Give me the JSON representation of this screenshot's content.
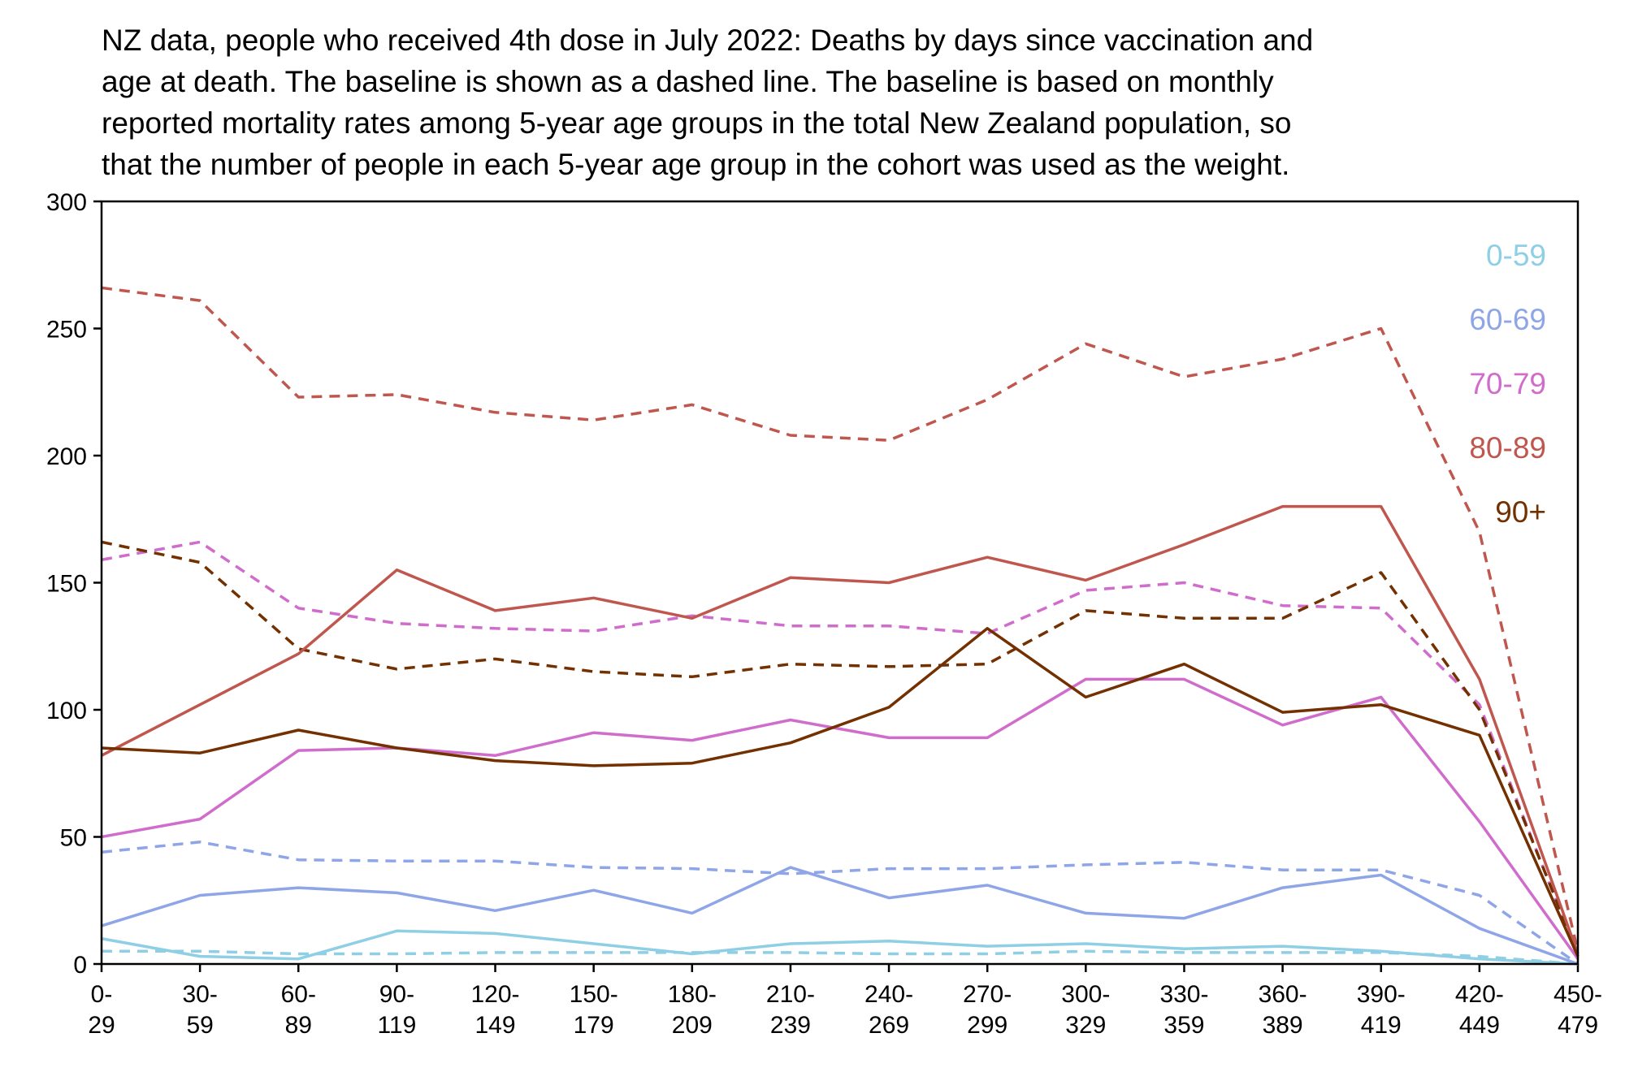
{
  "chart_data": {
    "type": "line",
    "title": [
      "NZ data, people who received 4th dose in July 2022: Deaths by days since vaccination and",
      "age at death. The baseline is shown as a dashed line. The baseline is based on monthly",
      "reported mortality rates among 5-year age groups in the total New Zealand population, so",
      "that the number of people in each 5-year age group in the cohort was used as the weight."
    ],
    "xlabel": "",
    "ylabel": "",
    "ylim": [
      0,
      300
    ],
    "yticks": [
      "0",
      "50",
      "100",
      "150",
      "200",
      "250",
      "300"
    ],
    "categories": [
      [
        "0-",
        "29"
      ],
      [
        "30-",
        "59"
      ],
      [
        "60-",
        "89"
      ],
      [
        "90-",
        "119"
      ],
      [
        "120-",
        "149"
      ],
      [
        "150-",
        "179"
      ],
      [
        "180-",
        "209"
      ],
      [
        "210-",
        "239"
      ],
      [
        "240-",
        "269"
      ],
      [
        "270-",
        "299"
      ],
      [
        "300-",
        "329"
      ],
      [
        "330-",
        "359"
      ],
      [
        "360-",
        "389"
      ],
      [
        "390-",
        "419"
      ],
      [
        "420-",
        "449"
      ],
      [
        "450-",
        "479"
      ]
    ],
    "grid": false,
    "legend_position": "top-right",
    "series": [
      {
        "name": "0-59",
        "color": "#8ecfe5",
        "values": [
          10,
          3,
          2,
          13,
          12,
          8,
          4,
          8,
          9,
          7,
          8,
          6,
          7,
          5,
          2,
          0
        ],
        "baseline": [
          5,
          5,
          4,
          4,
          4.5,
          4.5,
          4.5,
          4.5,
          4,
          4,
          5,
          4.5,
          4.5,
          4.5,
          3,
          0
        ]
      },
      {
        "name": "60-69",
        "color": "#8ea5e8",
        "values": [
          15,
          27,
          30,
          28,
          21,
          29,
          20,
          38,
          26,
          31,
          20,
          18,
          30,
          35,
          14,
          0
        ],
        "baseline": [
          44,
          48,
          41,
          40.5,
          40.5,
          38,
          37.5,
          35.5,
          37.5,
          37.5,
          39,
          40,
          37,
          37,
          27,
          0
        ]
      },
      {
        "name": "70-79",
        "color": "#d06ccb",
        "values": [
          50,
          57,
          84,
          85,
          82,
          91,
          88,
          96,
          89,
          89,
          112,
          112,
          94,
          105,
          56,
          2
        ],
        "baseline": [
          159,
          166,
          140,
          134,
          132,
          131,
          137,
          133,
          133,
          130,
          147,
          150,
          141,
          140,
          102,
          3
        ]
      },
      {
        "name": "80-89",
        "color": "#c0574f",
        "values": [
          82,
          102,
          122,
          155,
          139,
          144,
          136,
          152,
          150,
          160,
          151,
          165,
          180,
          180,
          112,
          4
        ],
        "baseline": [
          266,
          261,
          223,
          224,
          217,
          214,
          220,
          208,
          206,
          222,
          244,
          231,
          238,
          250,
          170,
          5
        ]
      },
      {
        "name": "90+",
        "color": "#733000",
        "values": [
          85,
          83,
          92,
          85,
          80,
          78,
          79,
          87,
          101,
          132,
          105,
          118,
          99,
          102,
          90,
          3
        ],
        "baseline": [
          166,
          158,
          124,
          116,
          120,
          115,
          113,
          118,
          117,
          118,
          139,
          136,
          136,
          154,
          100,
          4
        ]
      }
    ]
  }
}
